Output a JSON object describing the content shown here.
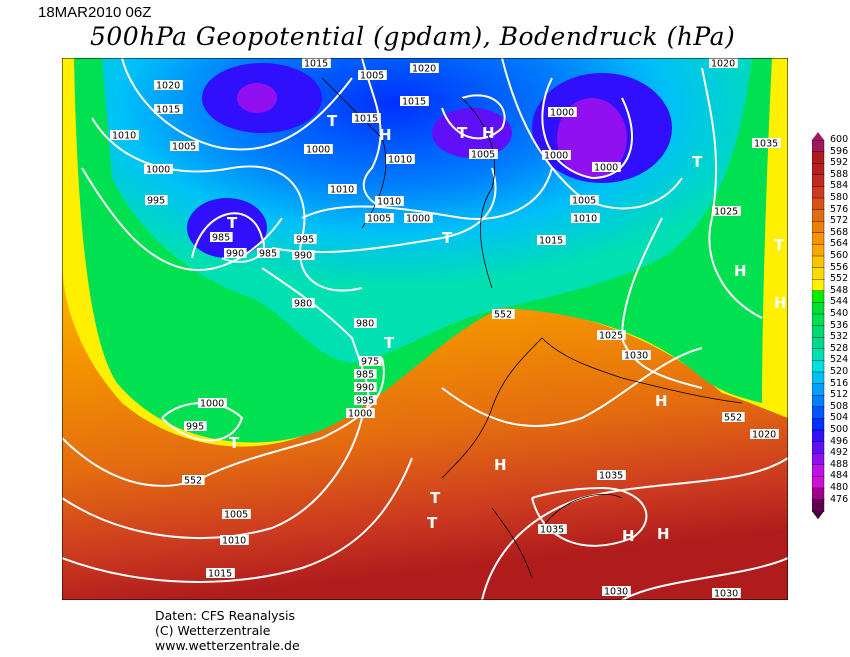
{
  "header": {
    "date": "18MAR2010 06Z",
    "title": "500hPa Geopotential (gpdam), Bodendruck (hPa)"
  },
  "colorbar": {
    "labels": [
      "600",
      "596",
      "592",
      "588",
      "584",
      "580",
      "576",
      "572",
      "568",
      "564",
      "560",
      "556",
      "552",
      "548",
      "544",
      "540",
      "536",
      "532",
      "528",
      "524",
      "520",
      "516",
      "512",
      "508",
      "504",
      "500",
      "496",
      "492",
      "488",
      "484",
      "480",
      "476"
    ],
    "colors": [
      "#9e1a5c",
      "#b01c1c",
      "#b82020",
      "#c02a22",
      "#cc3a20",
      "#dc5018",
      "#e46c10",
      "#ec8008",
      "#f49400",
      "#f8aa00",
      "#fcc400",
      "#fcdc00",
      "#fff000",
      "#00f000",
      "#00e030",
      "#00e050",
      "#00d870",
      "#00d890",
      "#00e0b0",
      "#00e0e0",
      "#00c0f8",
      "#00a0fc",
      "#0080fc",
      "#0058fc",
      "#0030fc",
      "#3010fc",
      "#6010f8",
      "#9010f0",
      "#c010e8",
      "#d010d8",
      "#a0008c",
      "#600050"
    ]
  },
  "map": {
    "contour_552_label": "552",
    "isobar_labels": [
      "1020",
      "1015",
      "1010",
      "1005",
      "1000",
      "995",
      "985",
      "990",
      "985",
      "990",
      "995",
      "980",
      "980",
      "975",
      "985",
      "990",
      "995",
      "1000",
      "1000",
      "995",
      "1005",
      "1010",
      "1015",
      "1010",
      "1015",
      "1000",
      "1010",
      "1005",
      "1000",
      "1020",
      "1015",
      "1005",
      "1000",
      "1000",
      "1005",
      "1010",
      "1015",
      "1005",
      "1035",
      "1025",
      "1025",
      "1030",
      "1035",
      "1035",
      "1020",
      "1030",
      "1000",
      "1010",
      "552",
      "552",
      "552",
      "1015",
      "1020",
      "1030"
    ],
    "pressure_centers": [
      "T",
      "T",
      "H",
      "T",
      "H",
      "T",
      "T",
      "T",
      "T",
      "T",
      "H",
      "H",
      "H",
      "T",
      "H",
      "H",
      "T",
      "H"
    ]
  },
  "footer": {
    "source": "Daten: CFS Reanalysis",
    "copyright": "(C) Wetterzentrale",
    "url": "www.wetterzentrale.de"
  }
}
